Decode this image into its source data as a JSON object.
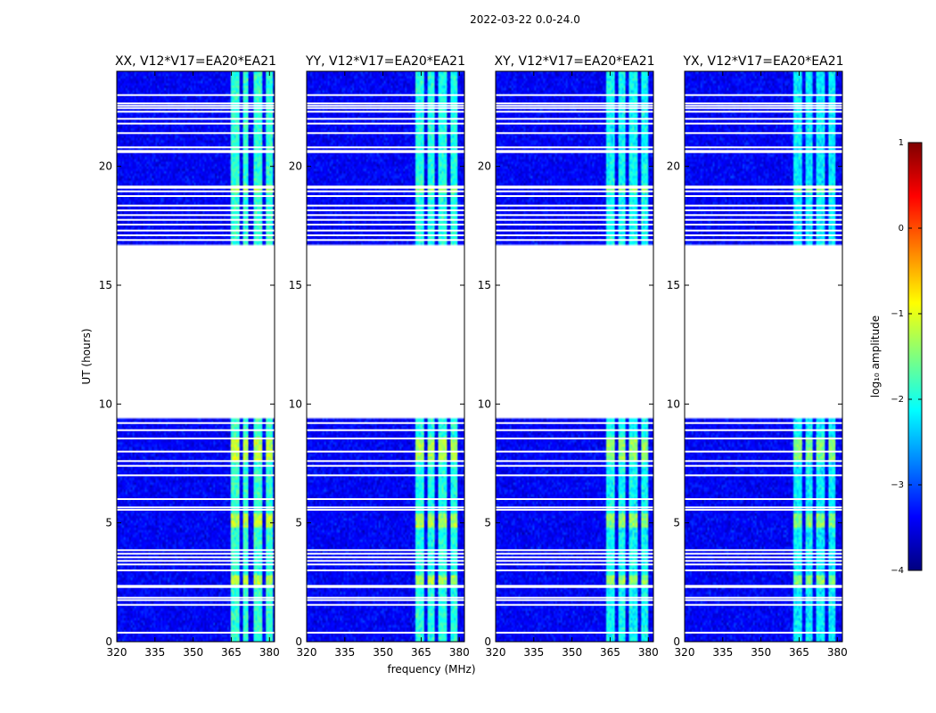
{
  "figure": {
    "suptitle": "2022-03-22 0.0-24.0",
    "xlabel": "frequency (MHz)",
    "ylabel": "UT (hours)"
  },
  "colorbar": {
    "label": "log₁₀ amplitude",
    "ticks": [
      1,
      0,
      -1,
      -2,
      -3,
      -4
    ],
    "tick_labels": [
      "1",
      "0",
      "−1",
      "−2",
      "−3",
      "−4"
    ],
    "range": [
      -4,
      1
    ],
    "colormap": "jet",
    "stops": [
      "#00007f",
      "#0000ff",
      "#0080ff",
      "#00ffff",
      "#7fff7f",
      "#ffff00",
      "#ff8000",
      "#ff0000",
      "#7f0000"
    ]
  },
  "chart_data": {
    "type": "heatmap",
    "description_type": "dynamic spectrum",
    "x_range_mhz": [
      320,
      382
    ],
    "y_range_hours": [
      0,
      24
    ],
    "x_ticks": [
      320,
      335,
      350,
      365,
      380
    ],
    "x_tick_labels": [
      "320",
      "335",
      "350",
      "365",
      "380"
    ],
    "y_ticks": [
      0,
      5,
      10,
      15,
      20
    ],
    "y_tick_labels": [
      "0",
      "5",
      "10",
      "15",
      "20"
    ],
    "background_log_amplitude": -3.4,
    "data_gaps_hours": [
      [
        9.35,
        16.65
      ]
    ],
    "flag_lines_hours": [
      0.38,
      1.55,
      1.75,
      1.85,
      2.3,
      2.35,
      3.0,
      3.25,
      3.4,
      3.55,
      3.7,
      3.85,
      5.55,
      5.65,
      6.0,
      7.0,
      7.4,
      7.6,
      8.0,
      8.55,
      8.9,
      9.2,
      16.9,
      17.1,
      17.3,
      17.55,
      17.75,
      17.95,
      18.15,
      18.35,
      18.75,
      18.95,
      19.1,
      19.15,
      20.6,
      20.65,
      20.8,
      21.4,
      21.8,
      22.0,
      22.3,
      22.45,
      22.55,
      22.65,
      23.0
    ],
    "rfi_channels_mhz": [
      [
        362.5,
        366
      ],
      [
        367.5,
        370
      ],
      [
        371.5,
        375
      ],
      [
        376.5,
        379
      ]
    ],
    "panels": [
      {
        "title": "XX, V12*V17=EA20*EA21",
        "rfi_offset_mhz": 2,
        "peak_log_amplitude": -1.2
      },
      {
        "title": "YY, V12*V17=EA20*EA21",
        "rfi_offset_mhz": 0,
        "peak_log_amplitude": -1.3
      },
      {
        "title": "XY, V12*V17=EA20*EA21",
        "rfi_offset_mhz": 1,
        "peak_log_amplitude": -1.4
      },
      {
        "title": "YX, V12*V17=EA20*EA21",
        "rfi_offset_mhz": 0,
        "peak_log_amplitude": -1.5
      }
    ]
  }
}
